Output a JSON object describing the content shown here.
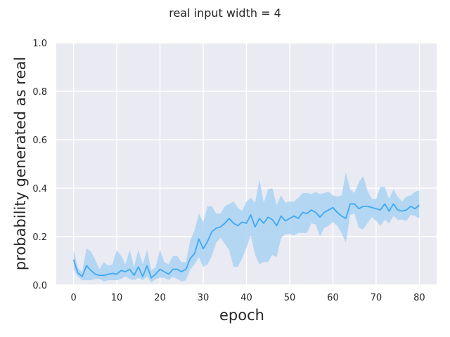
{
  "chart_data": {
    "type": "line",
    "title": "real input width = 4",
    "xlabel": "epoch",
    "ylabel": "probability generated as real",
    "xlim": [
      -4,
      84
    ],
    "ylim": [
      0.0,
      1.0
    ],
    "xticks": [
      0,
      10,
      20,
      30,
      40,
      50,
      60,
      70,
      80
    ],
    "yticks": [
      0.0,
      0.2,
      0.4,
      0.6,
      0.8,
      1.0
    ],
    "xtick_labels": [
      "0",
      "10",
      "20",
      "30",
      "40",
      "50",
      "60",
      "70",
      "80"
    ],
    "ytick_labels": [
      "0.0",
      "0.2",
      "0.4",
      "0.6",
      "0.8",
      "1.0"
    ],
    "grid": true,
    "series": [
      {
        "color": "#3fa9f5",
        "band_color": "#a9d2f3",
        "x": [
          0,
          1,
          2,
          3,
          4,
          5,
          6,
          7,
          8,
          9,
          10,
          11,
          12,
          13,
          14,
          15,
          16,
          17,
          18,
          19,
          20,
          21,
          22,
          23,
          24,
          25,
          26,
          27,
          28,
          29,
          30,
          31,
          32,
          33,
          34,
          35,
          36,
          37,
          38,
          39,
          40,
          41,
          42,
          43,
          44,
          45,
          46,
          47,
          48,
          49,
          50,
          51,
          52,
          53,
          54,
          55,
          56,
          57,
          58,
          59,
          60,
          61,
          62,
          63,
          64,
          65,
          66,
          67,
          68,
          69,
          70,
          71,
          72,
          73,
          74,
          75,
          76,
          77,
          78,
          79,
          80
        ],
        "values": [
          0.105,
          0.05,
          0.035,
          0.08,
          0.06,
          0.045,
          0.04,
          0.04,
          0.045,
          0.048,
          0.045,
          0.06,
          0.055,
          0.065,
          0.04,
          0.075,
          0.035,
          0.08,
          0.03,
          0.045,
          0.065,
          0.055,
          0.045,
          0.065,
          0.065,
          0.055,
          0.065,
          0.11,
          0.13,
          0.19,
          0.15,
          0.18,
          0.22,
          0.235,
          0.24,
          0.255,
          0.275,
          0.255,
          0.245,
          0.26,
          0.255,
          0.29,
          0.24,
          0.275,
          0.255,
          0.28,
          0.27,
          0.245,
          0.285,
          0.265,
          0.275,
          0.285,
          0.275,
          0.3,
          0.295,
          0.31,
          0.3,
          0.28,
          0.3,
          0.31,
          0.32,
          0.3,
          0.285,
          0.275,
          0.335,
          0.335,
          0.315,
          0.325,
          0.325,
          0.32,
          0.315,
          0.31,
          0.335,
          0.305,
          0.335,
          0.31,
          0.305,
          0.31,
          0.325,
          0.315,
          0.33
        ],
        "upper": [
          0.145,
          0.07,
          0.055,
          0.15,
          0.14,
          0.105,
          0.065,
          0.095,
          0.08,
          0.085,
          0.145,
          0.12,
          0.085,
          0.145,
          0.075,
          0.145,
          0.085,
          0.145,
          0.06,
          0.075,
          0.145,
          0.095,
          0.085,
          0.12,
          0.12,
          0.095,
          0.095,
          0.185,
          0.225,
          0.295,
          0.26,
          0.325,
          0.325,
          0.295,
          0.295,
          0.325,
          0.335,
          0.345,
          0.32,
          0.305,
          0.345,
          0.36,
          0.34,
          0.435,
          0.34,
          0.395,
          0.4,
          0.33,
          0.37,
          0.34,
          0.345,
          0.345,
          0.36,
          0.38,
          0.38,
          0.375,
          0.385,
          0.375,
          0.38,
          0.385,
          0.37,
          0.365,
          0.37,
          0.465,
          0.395,
          0.38,
          0.425,
          0.45,
          0.39,
          0.355,
          0.355,
          0.405,
          0.405,
          0.355,
          0.395,
          0.365,
          0.345,
          0.365,
          0.37,
          0.385,
          0.39
        ],
        "lower": [
          0.065,
          0.035,
          0.02,
          0.02,
          0.02,
          0.025,
          0.025,
          0.015,
          0.02,
          0.02,
          0.02,
          0.025,
          0.035,
          0.025,
          0.02,
          0.03,
          0.02,
          0.035,
          0.01,
          0.025,
          0.03,
          0.03,
          0.02,
          0.035,
          0.025,
          0.015,
          0.02,
          0.065,
          0.085,
          0.115,
          0.075,
          0.085,
          0.12,
          0.175,
          0.195,
          0.17,
          0.145,
          0.075,
          0.075,
          0.11,
          0.155,
          0.205,
          0.125,
          0.085,
          0.095,
          0.095,
          0.125,
          0.115,
          0.195,
          0.21,
          0.21,
          0.205,
          0.215,
          0.215,
          0.215,
          0.255,
          0.25,
          0.2,
          0.235,
          0.245,
          0.26,
          0.245,
          0.215,
          0.175,
          0.29,
          0.295,
          0.235,
          0.23,
          0.255,
          0.28,
          0.265,
          0.245,
          0.27,
          0.255,
          0.285,
          0.27,
          0.27,
          0.265,
          0.29,
          0.285,
          0.275
        ]
      }
    ]
  }
}
